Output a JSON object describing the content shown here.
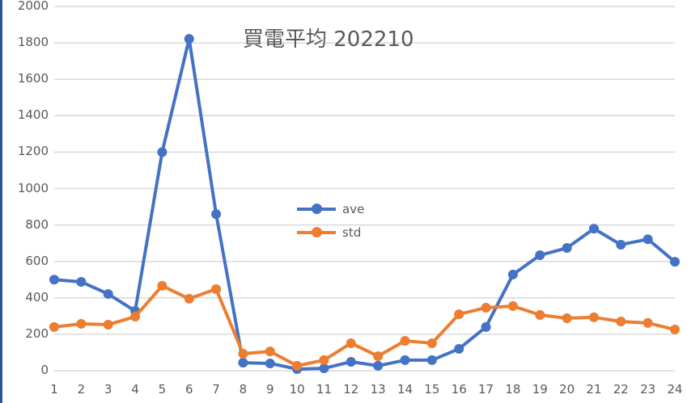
{
  "chart_data": {
    "type": "line",
    "title": "買電平均 202210",
    "xlabel": "",
    "ylabel": "",
    "x": [
      1,
      2,
      3,
      4,
      5,
      6,
      7,
      8,
      9,
      10,
      11,
      12,
      13,
      14,
      15,
      16,
      17,
      18,
      19,
      20,
      21,
      22,
      23,
      24
    ],
    "ylim": [
      0,
      2000
    ],
    "yticks": [
      0,
      200,
      400,
      600,
      800,
      1000,
      1200,
      1400,
      1600,
      1800,
      2000
    ],
    "grid": true,
    "legend_position": "inside-center",
    "series": [
      {
        "name": "ave",
        "color": "#4472c4",
        "values": [
          500,
          488,
          421,
          328,
          1200,
          1822,
          860,
          44,
          40,
          9,
          13,
          49,
          27,
          58,
          58,
          120,
          240,
          528,
          634,
          674,
          780,
          692,
          722,
          598
        ]
      },
      {
        "name": "std",
        "color": "#ed7d31",
        "values": [
          240,
          257,
          253,
          297,
          466,
          395,
          448,
          93,
          106,
          27,
          58,
          151,
          80,
          164,
          151,
          310,
          346,
          355,
          306,
          288,
          293,
          270,
          262,
          226
        ]
      }
    ]
  },
  "colors": {
    "grid": "#d9d9d9",
    "text": "#595959",
    "left_border": "#2f5597"
  }
}
